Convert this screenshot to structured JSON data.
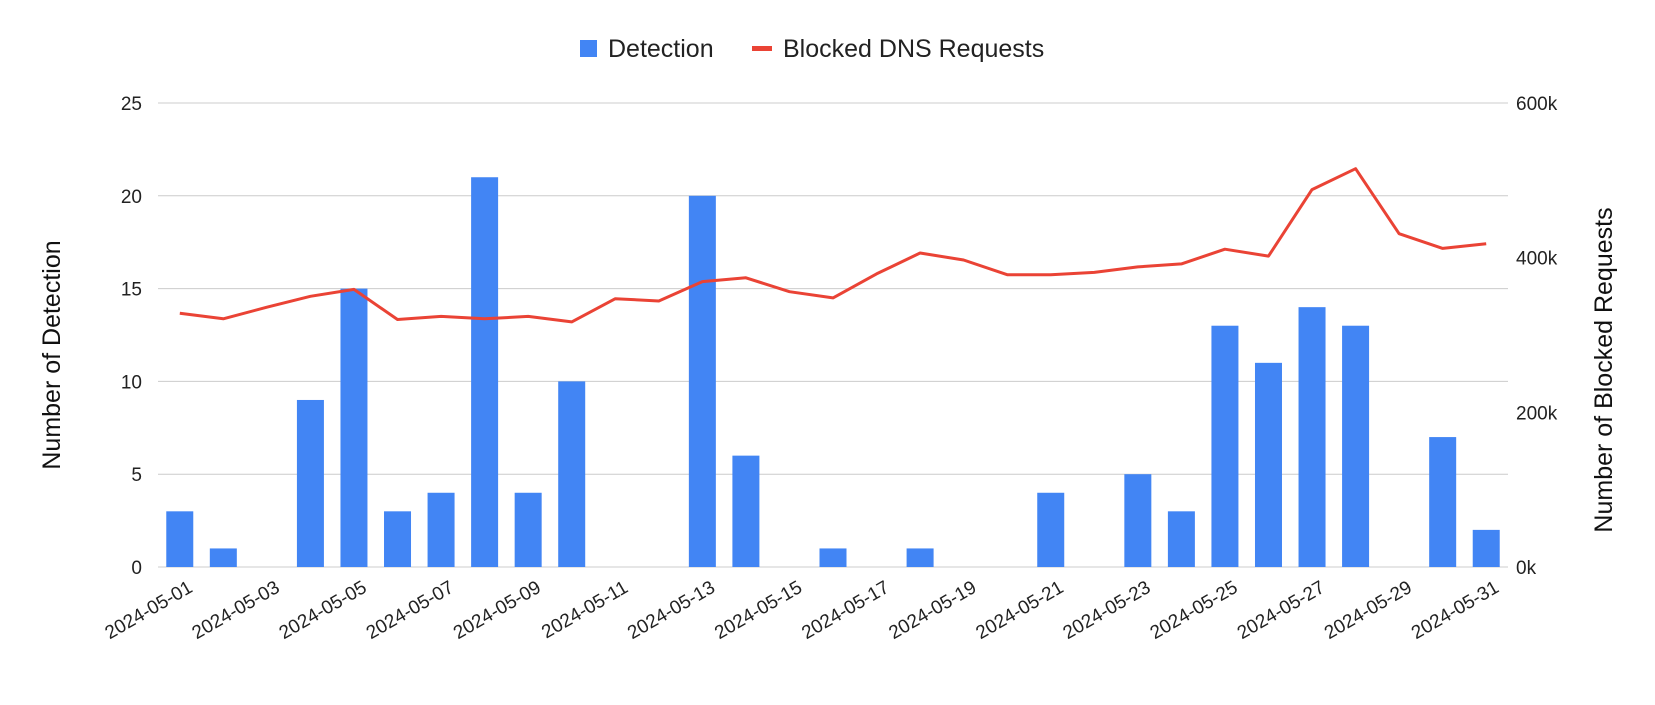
{
  "chart_data": {
    "type": "bar",
    "categories": [
      "2024-05-01",
      "2024-05-02",
      "2024-05-03",
      "2024-05-04",
      "2024-05-05",
      "2024-05-06",
      "2024-05-07",
      "2024-05-08",
      "2024-05-09",
      "2024-05-10",
      "2024-05-11",
      "2024-05-12",
      "2024-05-13",
      "2024-05-14",
      "2024-05-15",
      "2024-05-16",
      "2024-05-17",
      "2024-05-18",
      "2024-05-19",
      "2024-05-20",
      "2024-05-21",
      "2024-05-22",
      "2024-05-23",
      "2024-05-24",
      "2024-05-25",
      "2024-05-26",
      "2024-05-27",
      "2024-05-28",
      "2024-05-29",
      "2024-05-30",
      "2024-05-31"
    ],
    "x_tick_labels": [
      "2024-05-01",
      "2024-05-03",
      "2024-05-05",
      "2024-05-07",
      "2024-05-09",
      "2024-05-11",
      "2024-05-13",
      "2024-05-15",
      "2024-05-17",
      "2024-05-19",
      "2024-05-21",
      "2024-05-23",
      "2024-05-25",
      "2024-05-27",
      "2024-05-29",
      "2024-05-31"
    ],
    "series": [
      {
        "name": "Detection",
        "type": "bar",
        "axis": "left",
        "color": "#4285f4",
        "values": [
          3,
          1,
          0,
          9,
          15,
          3,
          4,
          21,
          4,
          10,
          0,
          0,
          20,
          6,
          0,
          1,
          0,
          1,
          0,
          0,
          4,
          0,
          5,
          3,
          13,
          11,
          14,
          13,
          0,
          7,
          2
        ]
      },
      {
        "name": "Blocked DNS Requests",
        "type": "line",
        "axis": "right",
        "color": "#ea4335",
        "values": [
          328000,
          321000,
          336000,
          350000,
          359000,
          320000,
          324000,
          321000,
          324000,
          317000,
          347000,
          344000,
          369000,
          374000,
          356000,
          348000,
          379000,
          406000,
          397000,
          378000,
          378000,
          381000,
          388000,
          392000,
          411000,
          402000,
          488000,
          515000,
          431000,
          412000,
          418000
        ]
      }
    ],
    "y_left": {
      "label": "Number of Detection",
      "min": 0,
      "max": 25,
      "ticks": [
        0,
        5,
        10,
        15,
        20,
        25
      ],
      "tick_labels": [
        "0",
        "5",
        "10",
        "15",
        "20",
        "25"
      ]
    },
    "y_right": {
      "label": "Number of Blocked Requests",
      "min": 0,
      "max": 600000,
      "ticks": [
        0,
        200000,
        400000,
        600000
      ],
      "tick_labels": [
        "0k",
        "200k",
        "400k",
        "600k"
      ]
    },
    "grid": true,
    "legend_position": "top-center"
  }
}
